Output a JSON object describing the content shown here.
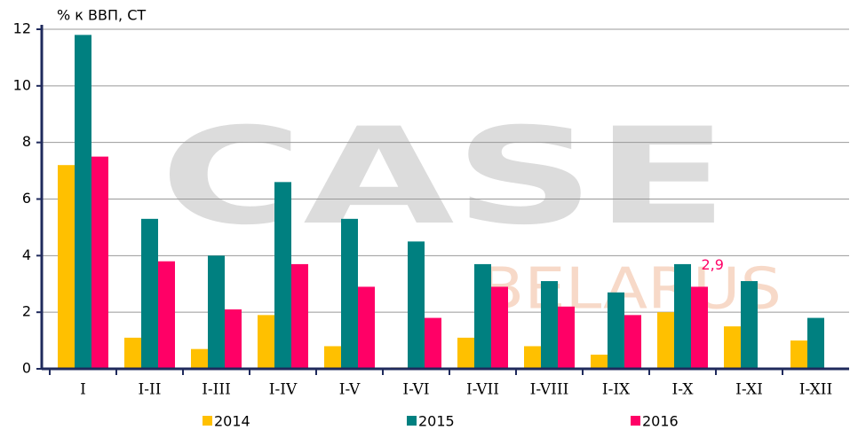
{
  "chart_data": {
    "type": "bar",
    "y_label": "% к ВВП, СТ",
    "watermark": {
      "main": "CASE",
      "sub": "BELARUS"
    },
    "categories": [
      "I",
      "I-II",
      "I-III",
      "I-IV",
      "I-V",
      "I-VI",
      "I-VII",
      "I-VIII",
      "I-IX",
      "I-X",
      "I-XI",
      "I-XII"
    ],
    "series": [
      {
        "name": "2014",
        "color": "#ffc000",
        "values": [
          7.2,
          1.1,
          0.7,
          1.9,
          0.8,
          0.05,
          1.1,
          0.8,
          0.5,
          2.0,
          1.5,
          1.0
        ]
      },
      {
        "name": "2015",
        "color": "#008080",
        "values": [
          11.8,
          5.3,
          4.0,
          6.6,
          5.3,
          4.5,
          3.7,
          3.1,
          2.7,
          3.7,
          3.1,
          1.8
        ]
      },
      {
        "name": "2016",
        "color": "#ff0066",
        "values": [
          7.5,
          3.8,
          2.1,
          3.7,
          2.9,
          1.8,
          2.9,
          2.2,
          1.9,
          2.9,
          null,
          null
        ],
        "value_labels": [
          null,
          null,
          null,
          null,
          null,
          null,
          null,
          null,
          null,
          "2,9",
          null,
          null
        ]
      }
    ],
    "ylim": [
      0,
      12
    ],
    "yticks": [
      0,
      2,
      4,
      6,
      8,
      10,
      12
    ],
    "grid": true,
    "legend": "bottom"
  }
}
